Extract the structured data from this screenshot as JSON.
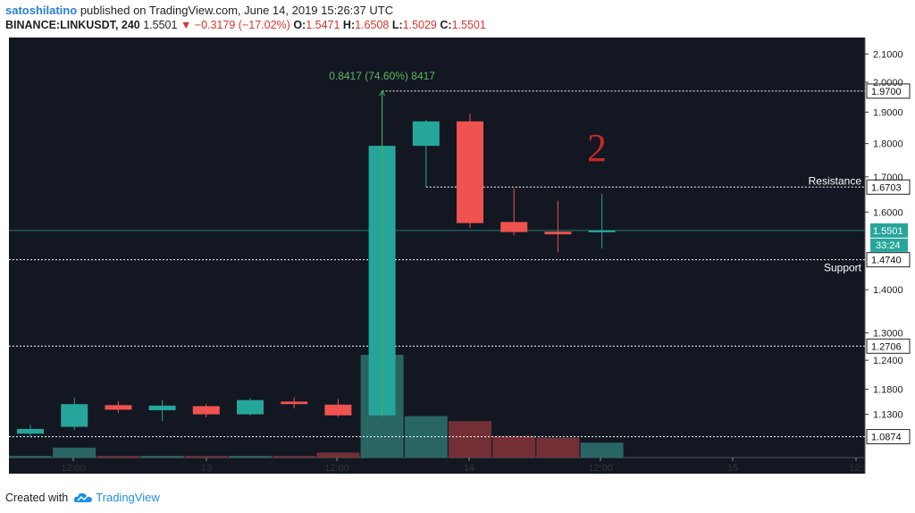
{
  "header": {
    "author": "satoshilatino",
    "published_text": "published on TradingView.com, June 14, 2019 15:26:37 UTC",
    "symbol": "BINANCE:LINKUSDT",
    "interval": "240",
    "last_price": "1.5501",
    "change": "−0.3179 (−17.02%)",
    "o_label": "O:",
    "o_value": "1.5471",
    "h_label": "H:",
    "h_value": "1.6508",
    "l_label": "L:",
    "l_value": "1.5029",
    "c_label": "C:",
    "c_value": "1.5501"
  },
  "footer": {
    "created_with": "Created with",
    "brand": "TradingView"
  },
  "colors": {
    "background": "#131722",
    "up": "#26a69a",
    "down": "#ef5350",
    "axis_bg": "#ffffff",
    "ruler": "#4caf50",
    "annotation": "#c62828"
  },
  "chart_data": {
    "type": "candlestick",
    "y_scale": "log",
    "ylim": [
      1.049,
      2.16
    ],
    "y_ticks": [
      "2.1000",
      "2.0000",
      "1.9000",
      "1.8000",
      "1.7000",
      "1.6000",
      "1.4000",
      "1.3000",
      "1.2400",
      "1.1800",
      "1.1300"
    ],
    "x_ticks": [
      "12:00",
      "13",
      "12:00",
      "14",
      "12:00",
      "15",
      "12:"
    ],
    "candles": [
      {
        "open": 1.093,
        "high": 1.11,
        "low": 1.085,
        "close": 1.102
      },
      {
        "open": 1.106,
        "high": 1.163,
        "low": 1.1,
        "close": 1.15
      },
      {
        "open": 1.148,
        "high": 1.156,
        "low": 1.133,
        "close": 1.139
      },
      {
        "open": 1.138,
        "high": 1.158,
        "low": 1.117,
        "close": 1.147
      },
      {
        "open": 1.146,
        "high": 1.15,
        "low": 1.124,
        "close": 1.13
      },
      {
        "open": 1.13,
        "high": 1.162,
        "low": 1.128,
        "close": 1.158
      },
      {
        "open": 1.155,
        "high": 1.163,
        "low": 1.142,
        "close": 1.15
      },
      {
        "open": 1.149,
        "high": 1.16,
        "low": 1.125,
        "close": 1.128
      },
      {
        "open": 1.128,
        "high": 1.97,
        "low": 1.125,
        "close": 1.793
      },
      {
        "open": 1.793,
        "high": 1.875,
        "low": 1.67,
        "close": 1.87
      },
      {
        "open": 1.87,
        "high": 1.895,
        "low": 1.557,
        "close": 1.57
      },
      {
        "open": 1.573,
        "high": 1.666,
        "low": 1.538,
        "close": 1.546
      },
      {
        "open": 1.547,
        "high": 1.631,
        "low": 1.493,
        "close": 1.54
      },
      {
        "open": 1.5471,
        "high": 1.6508,
        "low": 1.5029,
        "close": 1.5501
      }
    ],
    "volume_relative": [
      0.01,
      0.06,
      0.01,
      0.01,
      0.01,
      0.01,
      0.01,
      0.03,
      0.62,
      0.25,
      0.22,
      0.13,
      0.12,
      0.09
    ],
    "horizontal_levels": [
      {
        "price": 1.97,
        "label": "1.9700",
        "text": ""
      },
      {
        "price": 1.6703,
        "label": "1.6703",
        "text": "Resistance"
      },
      {
        "price": 1.474,
        "label": "1.4740",
        "text": "Support"
      },
      {
        "price": 1.2706,
        "label": "1.2706",
        "text": ""
      },
      {
        "price": 1.0874,
        "label": "1.0874",
        "text": ""
      }
    ],
    "last_price_label": "1.5501",
    "countdown": "33:24",
    "measure_text": "0.8417 (74.60%) 8417",
    "annotation": "2"
  }
}
